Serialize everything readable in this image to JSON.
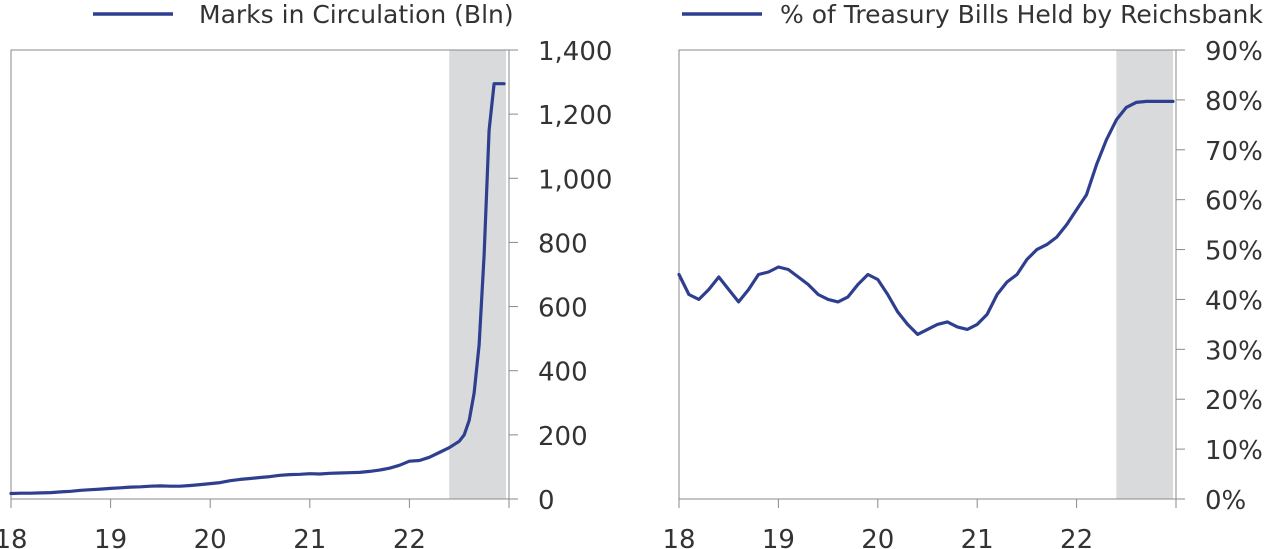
{
  "chart_data": [
    {
      "type": "line",
      "title": "",
      "legend_position": "top",
      "series": [
        {
          "name": "Marks in Circulation (Bln)",
          "color": "#2f3f8f",
          "x": [
            18.0,
            18.1,
            18.2,
            18.3,
            18.4,
            18.5,
            18.6,
            18.7,
            18.8,
            18.9,
            19.0,
            19.1,
            19.2,
            19.3,
            19.4,
            19.5,
            19.6,
            19.7,
            19.8,
            19.9,
            20.0,
            20.1,
            20.2,
            20.3,
            20.4,
            20.5,
            20.6,
            20.7,
            20.8,
            20.9,
            21.0,
            21.1,
            21.2,
            21.3,
            21.4,
            21.5,
            21.6,
            21.7,
            21.8,
            21.9,
            22.0,
            22.1,
            22.2,
            22.3,
            22.4,
            22.5,
            22.55,
            22.6,
            22.65,
            22.7,
            22.75,
            22.8,
            22.85,
            22.9,
            22.95
          ],
          "y": [
            17,
            18,
            18,
            19,
            20,
            22,
            24,
            27,
            29,
            31,
            33,
            35,
            37,
            38,
            40,
            41,
            40,
            40,
            42,
            45,
            48,
            51,
            57,
            61,
            64,
            67,
            70,
            74,
            76,
            77,
            79,
            78,
            80,
            81,
            82,
            83,
            86,
            90,
            96,
            105,
            118,
            120,
            130,
            145,
            160,
            180,
            200,
            245,
            330,
            480,
            760,
            1150,
            1295,
            1295,
            1295
          ]
        }
      ],
      "x_ticks": [
        18,
        19,
        20,
        21,
        22,
        23
      ],
      "x_tick_labels": [
        "18",
        "19",
        "20",
        "21",
        "22",
        ""
      ],
      "xlim": [
        18,
        23
      ],
      "ylim": [
        0,
        1400
      ],
      "y_ticks": [
        0,
        200,
        400,
        600,
        800,
        1000,
        1200,
        1400
      ],
      "y_tick_labels": [
        "0",
        "200",
        "400",
        "600",
        "800",
        "1,000",
        "1,200",
        "1,400"
      ],
      "y_axis_side": "right",
      "shaded_range": [
        22.4,
        22.97
      ],
      "shade_color": "#d9dadc",
      "grid": false
    },
    {
      "type": "line",
      "title": "",
      "legend_position": "top",
      "series": [
        {
          "name": "% of Treasury Bills Held by Reichsbank",
          "color": "#2f3f8f",
          "x": [
            18.0,
            18.1,
            18.2,
            18.3,
            18.4,
            18.5,
            18.6,
            18.7,
            18.8,
            18.9,
            19.0,
            19.1,
            19.2,
            19.3,
            19.4,
            19.5,
            19.6,
            19.7,
            19.8,
            19.9,
            20.0,
            20.1,
            20.2,
            20.3,
            20.4,
            20.5,
            20.6,
            20.7,
            20.8,
            20.9,
            21.0,
            21.1,
            21.2,
            21.3,
            21.4,
            21.5,
            21.6,
            21.7,
            21.8,
            21.9,
            22.0,
            22.1,
            22.2,
            22.3,
            22.4,
            22.5,
            22.6,
            22.7,
            22.8,
            22.9,
            22.97
          ],
          "y": [
            45,
            41,
            40,
            42,
            44.5,
            42,
            39.5,
            42,
            45,
            45.5,
            46.5,
            46,
            44.5,
            43,
            41,
            40,
            39.5,
            40.5,
            43,
            45,
            44,
            41,
            37.5,
            35,
            33,
            34,
            35,
            35.5,
            34.5,
            34,
            35,
            37,
            41,
            43.5,
            45,
            48,
            50,
            51,
            52.5,
            55,
            58,
            61,
            67,
            72,
            76,
            78.5,
            79.5,
            79.7,
            79.7,
            79.7,
            79.7
          ]
        }
      ],
      "x_ticks": [
        18,
        19,
        20,
        21,
        22,
        23
      ],
      "x_tick_labels": [
        "18",
        "19",
        "20",
        "21",
        "22",
        ""
      ],
      "xlim": [
        18,
        23
      ],
      "ylim": [
        0,
        90
      ],
      "y_ticks": [
        0,
        10,
        20,
        30,
        40,
        50,
        60,
        70,
        80,
        90
      ],
      "y_tick_labels": [
        "0%",
        "10%",
        "20%",
        "30%",
        "40%",
        "50%",
        "60%",
        "70%",
        "80%",
        "90%"
      ],
      "y_axis_side": "right",
      "shaded_range": [
        22.4,
        22.97
      ],
      "shade_color": "#d9dadc",
      "grid": false
    }
  ]
}
